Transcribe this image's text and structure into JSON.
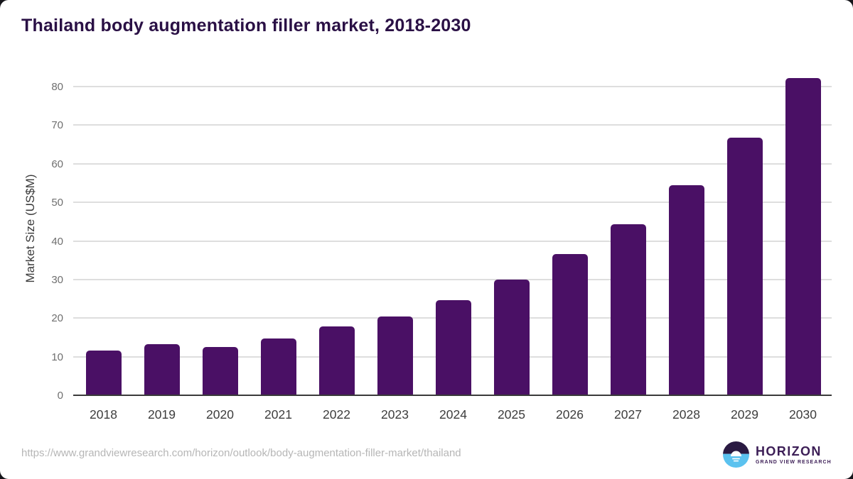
{
  "chart_data": {
    "type": "bar",
    "title": "Thailand body augmentation filler market, 2018-2030",
    "categories": [
      "2018",
      "2019",
      "2020",
      "2021",
      "2022",
      "2023",
      "2024",
      "2025",
      "2026",
      "2027",
      "2028",
      "2029",
      "2030"
    ],
    "values": [
      11.4,
      13.1,
      12.4,
      14.6,
      17.6,
      20.3,
      24.5,
      29.8,
      36.4,
      44.2,
      54.3,
      66.5,
      82.0
    ],
    "xlabel": "",
    "ylabel": "Market Size (US$M)",
    "ylim": [
      0,
      84
    ],
    "yticks": [
      0,
      10,
      20,
      30,
      40,
      50,
      60,
      70,
      80
    ],
    "grid": "horizontal",
    "legend": "none",
    "bar_color": "#4a1065",
    "title_color": "#2a1045"
  },
  "footer": {
    "source_url": "https://www.grandviewresearch.com/horizon/outlook/body-augmentation-filler-market/thailand",
    "logo": {
      "name": "HORIZON",
      "subtitle": "GRAND VIEW RESEARCH",
      "brand_purple": "#3c1e56",
      "brand_dark": "#2a1a42",
      "brand_blue": "#5bc2ef"
    }
  }
}
